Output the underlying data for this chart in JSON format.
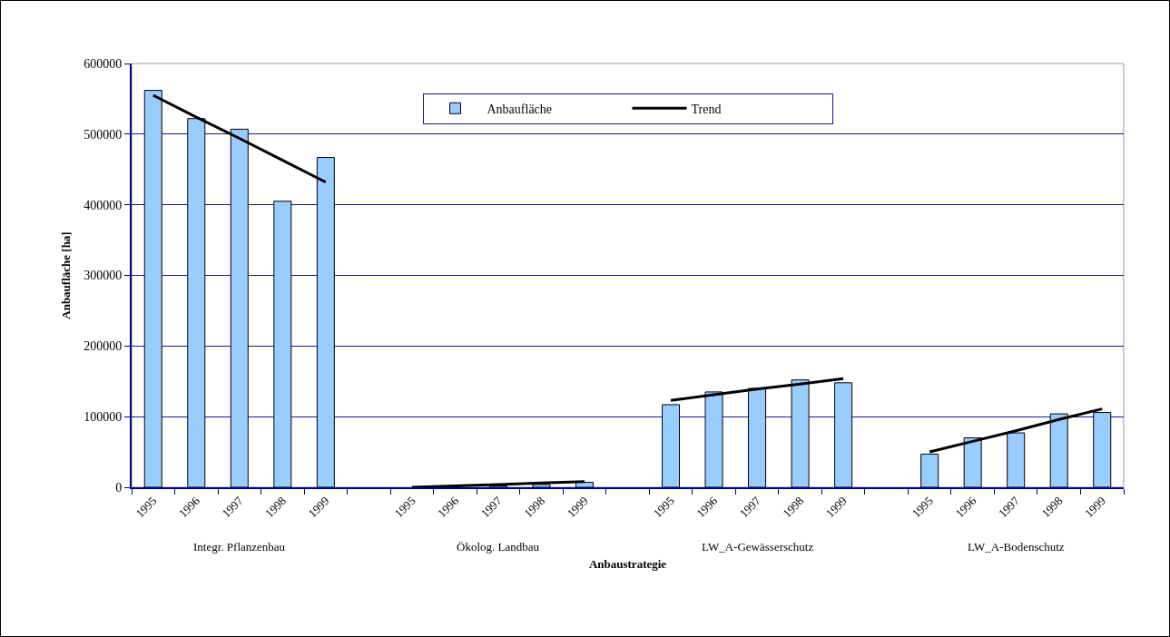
{
  "chart_data": {
    "type": "bar",
    "xlabel": "Anbaustrategie",
    "ylabel": "Anbaufläche [ha]",
    "categories": [
      "1995",
      "1996",
      "1997",
      "1998",
      "1999",
      null,
      "1995",
      "1996",
      "1997",
      "1998",
      "1999",
      null,
      "1995",
      "1996",
      "1997",
      "1998",
      "1999",
      null,
      "1995",
      "1996",
      "1997",
      "1998",
      "1999"
    ],
    "series": [
      {
        "name": "Anbaufläche",
        "color": "#99ccff",
        "values": [
          562000,
          522000,
          507000,
          405000,
          467000,
          null,
          0,
          null,
          2000,
          4000,
          7000,
          null,
          117000,
          135000,
          140000,
          152000,
          148000,
          null,
          47000,
          70000,
          77000,
          104000,
          106000
        ]
      },
      {
        "name": "Trend",
        "type": "line",
        "color": "#000000",
        "values": [
          555000,
          524000,
          494000,
          463000,
          432000,
          null,
          0,
          2000,
          4000,
          6000,
          8000,
          null,
          123000,
          131000,
          139000,
          146000,
          154000,
          null,
          50000,
          65000,
          80000,
          96000,
          111000
        ]
      }
    ],
    "ylim": [
      0,
      600000
    ],
    "yticks": [
      0,
      100000,
      200000,
      300000,
      400000,
      500000,
      600000
    ],
    "grid": "y",
    "legend": "top",
    "line_style": "solid",
    "marker": "none",
    "annotations": [
      "Integr. Pflanzenbau",
      "Ökolog. Landbau",
      "LW_A-Gewässerschutz",
      "LW_A-Bodenschutz"
    ]
  }
}
